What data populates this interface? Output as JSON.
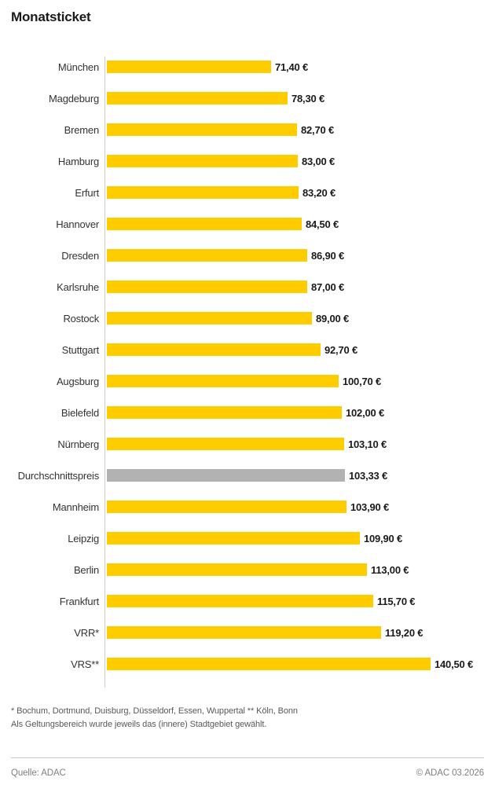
{
  "title": "Monatsticket",
  "chart_data": {
    "type": "bar",
    "orientation": "horizontal",
    "title": "Monatsticket",
    "unit": "EUR",
    "xlim": [
      0,
      145
    ],
    "grid": false,
    "legend": "none",
    "bar_color": "#FFCC00",
    "average_bar_color": "#B2B2B2",
    "categories": [
      "München",
      "Magdeburg",
      "Bremen",
      "Hamburg",
      "Erfurt",
      "Hannover",
      "Dresden",
      "Karlsruhe",
      "Rostock",
      "Stuttgart",
      "Augsburg",
      "Bielefeld",
      "Nürnberg",
      "Durchschnittspreis",
      "Mannheim",
      "Leipzig",
      "Berlin",
      "Frankfurt",
      "VRR*",
      "VRS**"
    ],
    "values": [
      71.4,
      78.3,
      82.7,
      83.0,
      83.2,
      84.5,
      86.9,
      87.0,
      89.0,
      92.7,
      100.7,
      102.0,
      103.1,
      103.33,
      103.9,
      109.9,
      113.0,
      115.7,
      119.2,
      140.5
    ],
    "bars": [
      {
        "label": "München",
        "value": 71.4,
        "display": "71,40 €",
        "kind": "city"
      },
      {
        "label": "Magdeburg",
        "value": 78.3,
        "display": "78,30 €",
        "kind": "city"
      },
      {
        "label": "Bremen",
        "value": 82.7,
        "display": "82,70 €",
        "kind": "city"
      },
      {
        "label": "Hamburg",
        "value": 83.0,
        "display": "83,00 €",
        "kind": "city"
      },
      {
        "label": "Erfurt",
        "value": 83.2,
        "display": "83,20 €",
        "kind": "city"
      },
      {
        "label": "Hannover",
        "value": 84.5,
        "display": "84,50 €",
        "kind": "city"
      },
      {
        "label": "Dresden",
        "value": 86.9,
        "display": "86,90 €",
        "kind": "city"
      },
      {
        "label": "Karlsruhe",
        "value": 87.0,
        "display": "87,00 €",
        "kind": "city"
      },
      {
        "label": "Rostock",
        "value": 89.0,
        "display": "89,00 €",
        "kind": "city"
      },
      {
        "label": "Stuttgart",
        "value": 92.7,
        "display": "92,70 €",
        "kind": "city"
      },
      {
        "label": "Augsburg",
        "value": 100.7,
        "display": "100,70 €",
        "kind": "city"
      },
      {
        "label": "Bielefeld",
        "value": 102.0,
        "display": "102,00 €",
        "kind": "city"
      },
      {
        "label": "Nürnberg",
        "value": 103.1,
        "display": "103,10 €",
        "kind": "city"
      },
      {
        "label": "Durchschnittspreis",
        "value": 103.33,
        "display": "103,33 €",
        "kind": "average"
      },
      {
        "label": "Mannheim",
        "value": 103.9,
        "display": "103,90 €",
        "kind": "city"
      },
      {
        "label": "Leipzig",
        "value": 109.9,
        "display": "109,90 €",
        "kind": "city"
      },
      {
        "label": "Berlin",
        "value": 113.0,
        "display": "113,00 €",
        "kind": "city"
      },
      {
        "label": "Frankfurt",
        "value": 115.7,
        "display": "115,70 €",
        "kind": "city"
      },
      {
        "label": "VRR*",
        "value": 119.2,
        "display": "119,20 €",
        "kind": "city"
      },
      {
        "label": "VRS**",
        "value": 140.5,
        "display": "140,50 €",
        "kind": "city"
      }
    ]
  },
  "footnotes": {
    "line1": "* Bochum, Dortmund, Duisburg, Düsseldorf, Essen, Wuppertal   ** Köln, Bonn",
    "line2": "Als Geltungsbereich wurde jeweils das (innere) Stadtgebiet gewählt."
  },
  "footer": {
    "source": "Quelle: ADAC",
    "copyright": "© ADAC 03.2026"
  }
}
